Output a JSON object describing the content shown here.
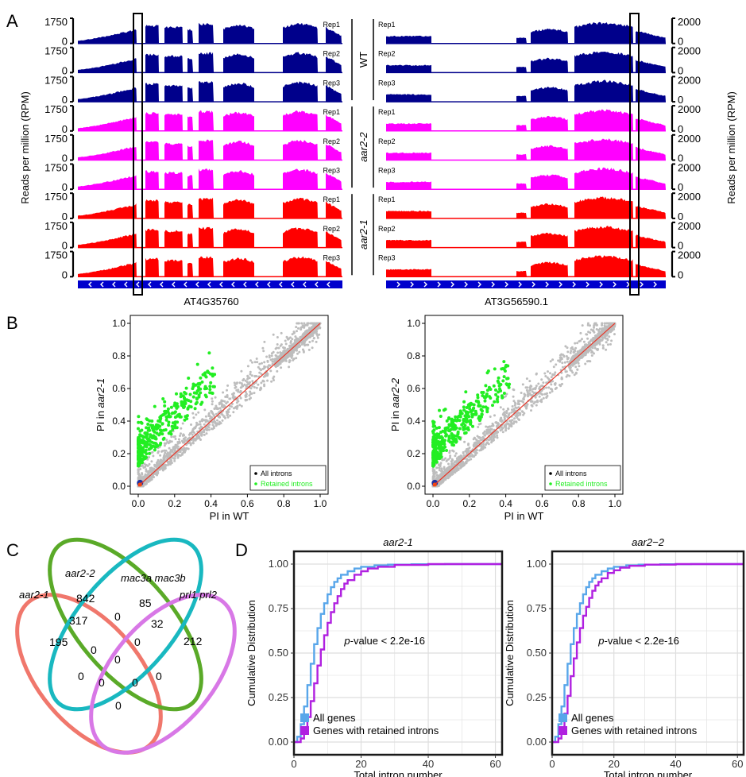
{
  "panel_labels": [
    "A",
    "B",
    "C",
    "D"
  ],
  "colors": {
    "wt": "#00008b",
    "aar2_2": "#ff00ff",
    "aar2_1": "#ff0000",
    "gene_bar": "#0000cc",
    "all_introns": "#bdbdbd",
    "retained": "#22ee22",
    "diag": "#e8382a",
    "all_genes": "#58a6ea",
    "retained_genes": "#b020e0",
    "venn_aar21": "#f0776c",
    "venn_aar22": "#5aaa28",
    "venn_mac": "#19b8c0",
    "venn_prl": "#d878e6"
  },
  "panelA": {
    "ylabel_left": "Reads per million (RPM)",
    "ylabel_right": "Reads per million (RPM)",
    "left_gene": "AT4G35760",
    "right_gene": "AT3G56590.1",
    "left_axis": {
      "top": "1750",
      "bottom": "0"
    },
    "right_axis": {
      "top": "2000",
      "bottom": "0"
    },
    "groups": [
      "WT",
      "aar2-2",
      "aar2-1"
    ],
    "reps": [
      "Rep1",
      "Rep2",
      "Rep3"
    ]
  },
  "panelB": {
    "left": {
      "xlabel": "PI in WT",
      "ylabel_prefix": "PI in ",
      "ylabel_italic": "aar2-1",
      "ticks": [
        "0.0",
        "0.2",
        "0.4",
        "0.6",
        "0.8",
        "1.0"
      ],
      "legend": [
        "All introns",
        "Retained introns"
      ]
    },
    "right": {
      "xlabel": "PI in WT",
      "ylabel_prefix": "PI in ",
      "ylabel_italic": "aar2-2",
      "ticks": [
        "0.0",
        "0.2",
        "0.4",
        "0.6",
        "0.8",
        "1.0"
      ],
      "legend": [
        "All introns",
        "Retained introns"
      ]
    }
  },
  "panelC": {
    "sets": [
      "aar2-1",
      "aar2-2",
      "mac3a mac3b",
      "prl1 prl2"
    ],
    "counts": {
      "only_aar21": "195",
      "only_aar22": "842",
      "only_mac": "85",
      "only_prl": "212",
      "aar21_aar22": "317",
      "aar22_mac": "0",
      "mac_prl": "32",
      "aar21_mac": "0",
      "aar22_prl": "0",
      "aar21_prl": "0",
      "center": "0",
      "a": "0",
      "b": "0",
      "c": "0",
      "d": "0"
    }
  },
  "chart_data": [
    {
      "type": "line",
      "title": "aar2-1",
      "xlabel": "Total intron number",
      "ylabel": "Cumulative Distribution",
      "xlim": [
        0,
        62
      ],
      "ylim": [
        0,
        1
      ],
      "xticks": [
        "0",
        "20",
        "40",
        "60"
      ],
      "yticks": [
        "0.00",
        "0.25",
        "0.50",
        "0.75",
        "1.00"
      ],
      "annotation_italic": "p",
      "annotation_rest": "-value < 2.2e-16",
      "series": [
        {
          "name": "All genes",
          "x": [
            0,
            1,
            2,
            3,
            4,
            5,
            6,
            7,
            8,
            9,
            10,
            11,
            12,
            13,
            14,
            16,
            18,
            20,
            24,
            28,
            35,
            45,
            62
          ],
          "y": [
            0,
            0.03,
            0.1,
            0.2,
            0.32,
            0.44,
            0.55,
            0.64,
            0.72,
            0.78,
            0.83,
            0.87,
            0.9,
            0.92,
            0.94,
            0.96,
            0.975,
            0.985,
            0.993,
            0.997,
            0.999,
            1.0,
            1.0
          ]
        },
        {
          "name": "Genes with retained introns",
          "x": [
            0,
            2,
            3,
            4,
            5,
            6,
            7,
            8,
            9,
            10,
            11,
            12,
            13,
            14,
            15,
            16,
            18,
            20,
            22,
            25,
            30,
            40,
            62
          ],
          "y": [
            0,
            0.02,
            0.07,
            0.14,
            0.23,
            0.33,
            0.43,
            0.52,
            0.6,
            0.67,
            0.73,
            0.78,
            0.82,
            0.86,
            0.89,
            0.91,
            0.94,
            0.96,
            0.975,
            0.985,
            0.995,
            1.0,
            1.0
          ]
        }
      ]
    },
    {
      "type": "line",
      "title": "aar2−2",
      "xlabel": "Total intron number",
      "ylabel": "Cumulative Distribution",
      "xlim": [
        0,
        62
      ],
      "ylim": [
        0,
        1
      ],
      "xticks": [
        "0",
        "20",
        "40",
        "60"
      ],
      "yticks": [
        "0.00",
        "0.25",
        "0.50",
        "0.75",
        "1.00"
      ],
      "annotation_italic": "p",
      "annotation_rest": "-value < 2.2e-16",
      "series": [
        {
          "name": "All genes",
          "x": [
            0,
            1,
            2,
            3,
            4,
            5,
            6,
            7,
            8,
            9,
            10,
            11,
            12,
            13,
            14,
            16,
            18,
            20,
            24,
            28,
            35,
            45,
            62
          ],
          "y": [
            0,
            0.03,
            0.1,
            0.2,
            0.32,
            0.44,
            0.55,
            0.64,
            0.72,
            0.78,
            0.83,
            0.87,
            0.9,
            0.92,
            0.94,
            0.96,
            0.975,
            0.985,
            0.993,
            0.997,
            0.999,
            1.0,
            1.0
          ]
        },
        {
          "name": "Genes with retained introns",
          "x": [
            0,
            2,
            3,
            4,
            5,
            6,
            7,
            8,
            9,
            10,
            11,
            12,
            13,
            14,
            15,
            16,
            18,
            20,
            22,
            25,
            30,
            40,
            62
          ],
          "y": [
            0,
            0.02,
            0.08,
            0.16,
            0.26,
            0.37,
            0.47,
            0.56,
            0.64,
            0.71,
            0.76,
            0.81,
            0.85,
            0.88,
            0.9,
            0.92,
            0.95,
            0.965,
            0.98,
            0.99,
            0.997,
            1.0,
            1.0
          ]
        }
      ]
    }
  ]
}
